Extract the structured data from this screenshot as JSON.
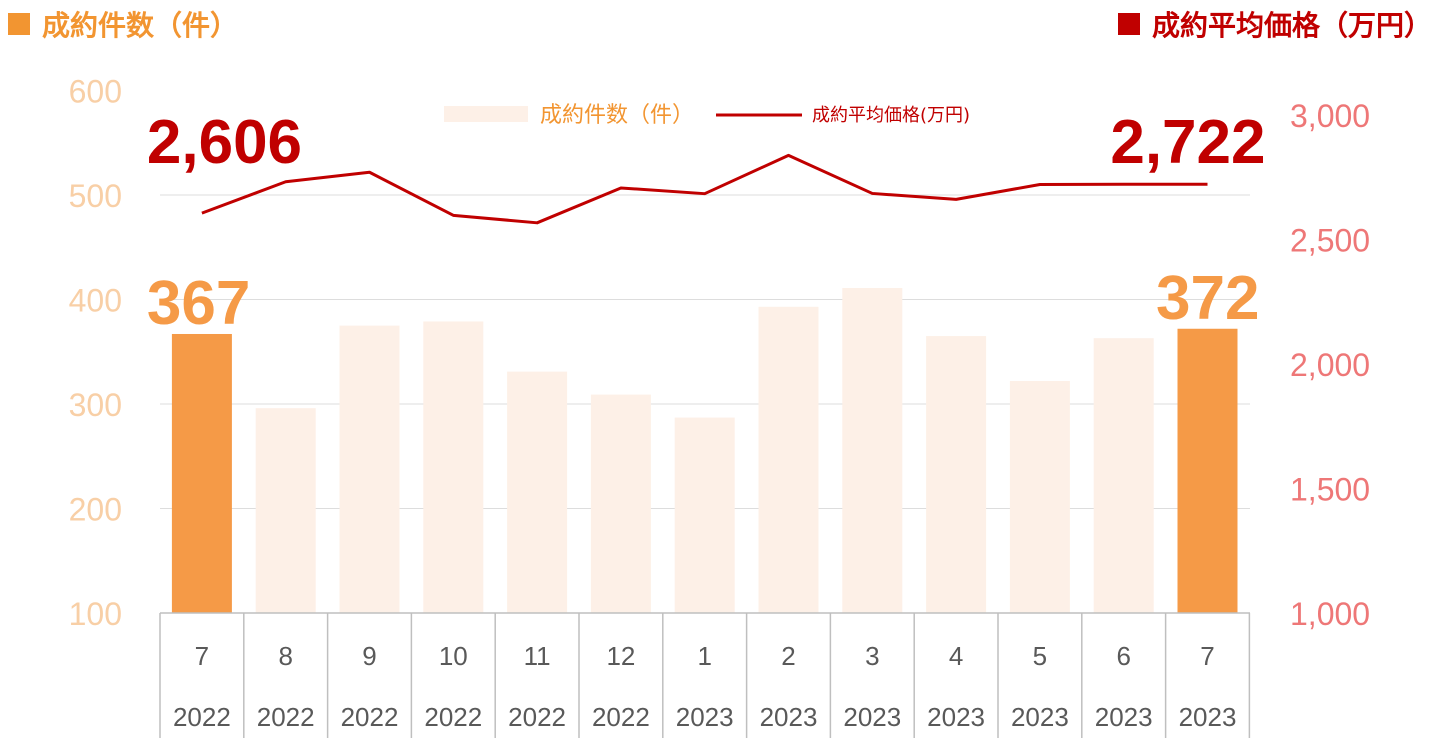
{
  "header": {
    "left_title": "成約件数（件）",
    "right_title": "成約平均価格（万円）"
  },
  "colors": {
    "bar_normal": "#fdf0e7",
    "bar_highlight": "#f59a47",
    "line": "#c00000",
    "left_axis_text": "#f8cfa6",
    "right_axis_text": "#ee7777",
    "label_count": "#f59a47",
    "label_price": "#c00000",
    "grid": "#dddddd"
  },
  "chart_data": {
    "type": "bar",
    "categories": [
      "7",
      "8",
      "9",
      "10",
      "11",
      "12",
      "1",
      "2",
      "3",
      "4",
      "5",
      "6",
      "7"
    ],
    "years": [
      "2022",
      "2022",
      "2022",
      "2022",
      "2022",
      "2022",
      "2023",
      "2023",
      "2023",
      "2023",
      "2023",
      "2023",
      "2023"
    ],
    "legend": [
      "成約件数（件）",
      "成約平均価格(万円)"
    ],
    "left_axis": {
      "ylim": [
        100,
        600
      ],
      "ticks": [
        "100",
        "200",
        "300",
        "400",
        "500",
        "600"
      ]
    },
    "right_axis": {
      "ylim": [
        1000,
        3000
      ],
      "ticks": [
        "1,000",
        "1,500",
        "2,000",
        "2,500",
        "3,000"
      ]
    },
    "series": [
      {
        "name": "成約件数（件）",
        "type": "bar",
        "axis": "left",
        "values": [
          367,
          296,
          375,
          379,
          331,
          309,
          287,
          393,
          411,
          365,
          322,
          363,
          372
        ],
        "highlight": [
          0,
          12
        ]
      },
      {
        "name": "成約平均価格(万円)",
        "type": "line",
        "axis": "right",
        "values": [
          2606,
          2732,
          2770,
          2597,
          2567,
          2707,
          2684,
          2838,
          2685,
          2661,
          2721,
          2722,
          2722
        ]
      }
    ],
    "data_labels": [
      {
        "text": "367",
        "series": "count",
        "index": 0
      },
      {
        "text": "372",
        "series": "count",
        "index": 12
      },
      {
        "text": "2,606",
        "series": "price",
        "index": 0
      },
      {
        "text": "2,722",
        "series": "price",
        "index": 12
      }
    ]
  }
}
